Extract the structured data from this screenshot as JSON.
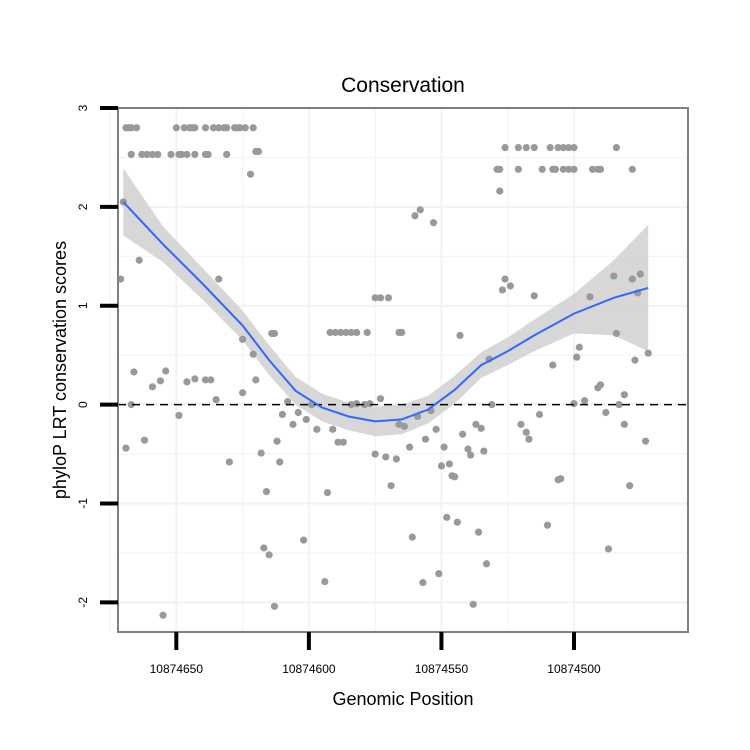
{
  "chart_data": {
    "type": "scatter",
    "title": "Conservation",
    "xlabel": "Genomic Position",
    "ylabel": "phyloP LRT conservation scores",
    "x_reversed": true,
    "xlim": [
      10874672,
      10874457
    ],
    "ylim": [
      -2.3,
      3.0
    ],
    "xticks": [
      10874650,
      10874600,
      10874550,
      10874500
    ],
    "xtick_labels": [
      "10874650",
      "10874600",
      "10874550",
      "10874500"
    ],
    "yticks": [
      -2,
      -1,
      0,
      1,
      2,
      3
    ],
    "ytick_labels": [
      "-2",
      "-1",
      "0",
      "1",
      "2",
      "3"
    ],
    "reference_line": {
      "y": 0,
      "style": "dashed"
    },
    "point_color": "#999999",
    "smooth_color": "#3366ff",
    "band_color": "#d3d3d3",
    "panel_border_color": "#7f7f7f",
    "grid": true,
    "points": [
      [
        10874669,
        2.8
      ],
      [
        10874668,
        2.8
      ],
      [
        10874667,
        2.8
      ],
      [
        10874665,
        2.8
      ],
      [
        10874650,
        2.8
      ],
      [
        10874647,
        2.8
      ],
      [
        10874645,
        2.8
      ],
      [
        10874644,
        2.8
      ],
      [
        10874643,
        2.8
      ],
      [
        10874639,
        2.8
      ],
      [
        10874636,
        2.8
      ],
      [
        10874634,
        2.8
      ],
      [
        10874632,
        2.8
      ],
      [
        10874631,
        2.8
      ],
      [
        10874628,
        2.8
      ],
      [
        10874627,
        2.8
      ],
      [
        10874626,
        2.8
      ],
      [
        10874624,
        2.8
      ],
      [
        10874621,
        2.8
      ],
      [
        10874667,
        2.53
      ],
      [
        10874663,
        2.53
      ],
      [
        10874661,
        2.53
      ],
      [
        10874659,
        2.53
      ],
      [
        10874657,
        2.53
      ],
      [
        10874652,
        2.53
      ],
      [
        10874649,
        2.53
      ],
      [
        10874648,
        2.53
      ],
      [
        10874646,
        2.53
      ],
      [
        10874643,
        2.53
      ],
      [
        10874639,
        2.53
      ],
      [
        10874638,
        2.53
      ],
      [
        10874631,
        2.53
      ],
      [
        10874620,
        2.56
      ],
      [
        10874619,
        2.56
      ],
      [
        10874622,
        2.33
      ],
      [
        10874670,
        2.05
      ],
      [
        10874671,
        1.27
      ],
      [
        10874664,
        1.46
      ],
      [
        10874634,
        1.27
      ],
      [
        10874625,
        0.66
      ],
      [
        10874614,
        0.72
      ],
      [
        10874613,
        0.72
      ],
      [
        10874669,
        -0.44
      ],
      [
        10874667,
        0.0
      ],
      [
        10874666,
        0.33
      ],
      [
        10874662,
        -0.36
      ],
      [
        10874659,
        0.18
      ],
      [
        10874656,
        0.24
      ],
      [
        10874654,
        0.34
      ],
      [
        10874655,
        -2.13
      ],
      [
        10874649,
        -0.11
      ],
      [
        10874646,
        0.23
      ],
      [
        10874643,
        0.26
      ],
      [
        10874639,
        0.25
      ],
      [
        10874637,
        0.25
      ],
      [
        10874635,
        0.05
      ],
      [
        10874630,
        -0.58
      ],
      [
        10874625,
        0.12
      ],
      [
        10874621,
        0.51
      ],
      [
        10874620,
        0.25
      ],
      [
        10874618,
        -0.49
      ],
      [
        10874617,
        -1.45
      ],
      [
        10874616,
        -0.88
      ],
      [
        10874615,
        -1.52
      ],
      [
        10874613,
        -2.04
      ],
      [
        10874612,
        -0.37
      ],
      [
        10874611,
        -0.58
      ],
      [
        10874610,
        -0.1
      ],
      [
        10874608,
        0.03
      ],
      [
        10874606,
        -0.2
      ],
      [
        10874604,
        -0.08
      ],
      [
        10874602,
        -1.37
      ],
      [
        10874601,
        -0.15
      ],
      [
        10874599,
        0.0
      ],
      [
        10874597,
        -0.25
      ],
      [
        10874594,
        -1.79
      ],
      [
        10874593,
        -0.89
      ],
      [
        10874591,
        -0.25
      ],
      [
        10874589,
        -0.38
      ],
      [
        10874587,
        -0.38
      ],
      [
        10874584,
        0.0
      ],
      [
        10874582,
        0.01
      ],
      [
        10874579,
        0.0
      ],
      [
        10874577,
        0.01
      ],
      [
        10874592,
        0.73
      ],
      [
        10874590,
        0.73
      ],
      [
        10874588,
        0.73
      ],
      [
        10874586,
        0.73
      ],
      [
        10874584,
        0.73
      ],
      [
        10874582,
        0.73
      ],
      [
        10874578,
        0.73
      ],
      [
        10874575,
        1.08
      ],
      [
        10874573,
        1.08
      ],
      [
        10874570,
        1.08
      ],
      [
        10874566,
        0.73
      ],
      [
        10874565,
        0.73
      ],
      [
        10874575,
        -0.5
      ],
      [
        10874573,
        0.06
      ],
      [
        10874571,
        -0.53
      ],
      [
        10874569,
        -0.82
      ],
      [
        10874567,
        -0.55
      ],
      [
        10874566,
        -0.2
      ],
      [
        10874564,
        -0.22
      ],
      [
        10874562,
        -0.43
      ],
      [
        10874561,
        -1.34
      ],
      [
        10874560,
        1.91
      ],
      [
        10874559,
        -0.12
      ],
      [
        10874558,
        1.97
      ],
      [
        10874557,
        -1.8
      ],
      [
        10874556,
        -0.35
      ],
      [
        10874554,
        -0.06
      ],
      [
        10874553,
        1.84
      ],
      [
        10874552,
        -0.25
      ],
      [
        10874551,
        -1.71
      ],
      [
        10874550,
        -0.62
      ],
      [
        10874549,
        -0.43
      ],
      [
        10874548,
        -1.14
      ],
      [
        10874547,
        -0.6
      ],
      [
        10874546,
        -0.72
      ],
      [
        10874545,
        -0.73
      ],
      [
        10874544,
        -1.19
      ],
      [
        10874543,
        0.7
      ],
      [
        10874542,
        -0.3
      ],
      [
        10874540,
        -0.45
      ],
      [
        10874539,
        -0.51
      ],
      [
        10874538,
        -2.02
      ],
      [
        10874537,
        -0.2
      ],
      [
        10874536,
        -1.29
      ],
      [
        10874535,
        -0.24
      ],
      [
        10874534,
        -0.47
      ],
      [
        10874533,
        -1.61
      ],
      [
        10874532,
        0.46
      ],
      [
        10874531,
        0.0
      ],
      [
        10874529,
        2.38
      ],
      [
        10874528,
        2.16
      ],
      [
        10874527,
        1.16
      ],
      [
        10874526,
        1.27
      ],
      [
        10874524,
        1.2
      ],
      [
        10874526,
        2.6
      ],
      [
        10874521,
        2.6
      ],
      [
        10874518,
        2.6
      ],
      [
        10874515,
        2.6
      ],
      [
        10874509,
        2.6
      ],
      [
        10874506,
        2.6
      ],
      [
        10874504,
        2.6
      ],
      [
        10874502,
        2.6
      ],
      [
        10874500,
        2.6
      ],
      [
        10874484,
        2.6
      ],
      [
        10874528,
        2.38
      ],
      [
        10874521,
        2.38
      ],
      [
        10874512,
        2.38
      ],
      [
        10874508,
        2.38
      ],
      [
        10874507,
        2.38
      ],
      [
        10874504,
        2.38
      ],
      [
        10874502,
        2.38
      ],
      [
        10874500,
        2.38
      ],
      [
        10874493,
        2.38
      ],
      [
        10874491,
        2.38
      ],
      [
        10874490,
        2.38
      ],
      [
        10874478,
        2.38
      ],
      [
        10874520,
        -0.2
      ],
      [
        10874518,
        -0.28
      ],
      [
        10874517,
        -0.35
      ],
      [
        10874515,
        1.1
      ],
      [
        10874513,
        -0.1
      ],
      [
        10874510,
        -1.22
      ],
      [
        10874508,
        0.4
      ],
      [
        10874506,
        -0.76
      ],
      [
        10874505,
        -0.75
      ],
      [
        10874500,
        0.01
      ],
      [
        10874499,
        0.48
      ],
      [
        10874498,
        0.58
      ],
      [
        10874496,
        0.04
      ],
      [
        10874494,
        1.09
      ],
      [
        10874491,
        0.17
      ],
      [
        10874490,
        0.2
      ],
      [
        10874488,
        -0.08
      ],
      [
        10874487,
        -1.46
      ],
      [
        10874485,
        1.3
      ],
      [
        10874484,
        0.72
      ],
      [
        10874483,
        0.0
      ],
      [
        10874481,
        0.1
      ],
      [
        10874481,
        -0.2
      ],
      [
        10874479,
        -0.82
      ],
      [
        10874478,
        1.27
      ],
      [
        10874477,
        0.45
      ],
      [
        10874476,
        1.13
      ],
      [
        10874475,
        1.32
      ],
      [
        10874473,
        -0.37
      ],
      [
        10874472,
        0.52
      ]
    ],
    "smooth_curve": [
      [
        10874670,
        2.05,
        0.34
      ],
      [
        10874655,
        1.62,
        0.18
      ],
      [
        10874640,
        1.22,
        0.16
      ],
      [
        10874625,
        0.8,
        0.15
      ],
      [
        10874615,
        0.45,
        0.15
      ],
      [
        10874605,
        0.14,
        0.14
      ],
      [
        10874595,
        -0.03,
        0.14
      ],
      [
        10874585,
        -0.12,
        0.14
      ],
      [
        10874575,
        -0.17,
        0.15
      ],
      [
        10874565,
        -0.15,
        0.15
      ],
      [
        10874555,
        -0.05,
        0.14
      ],
      [
        10874545,
        0.15,
        0.14
      ],
      [
        10874535,
        0.4,
        0.13
      ],
      [
        10874525,
        0.54,
        0.14
      ],
      [
        10874515,
        0.7,
        0.16
      ],
      [
        10874500,
        0.92,
        0.2
      ],
      [
        10874485,
        1.08,
        0.38
      ],
      [
        10874472,
        1.18,
        0.64
      ]
    ]
  }
}
